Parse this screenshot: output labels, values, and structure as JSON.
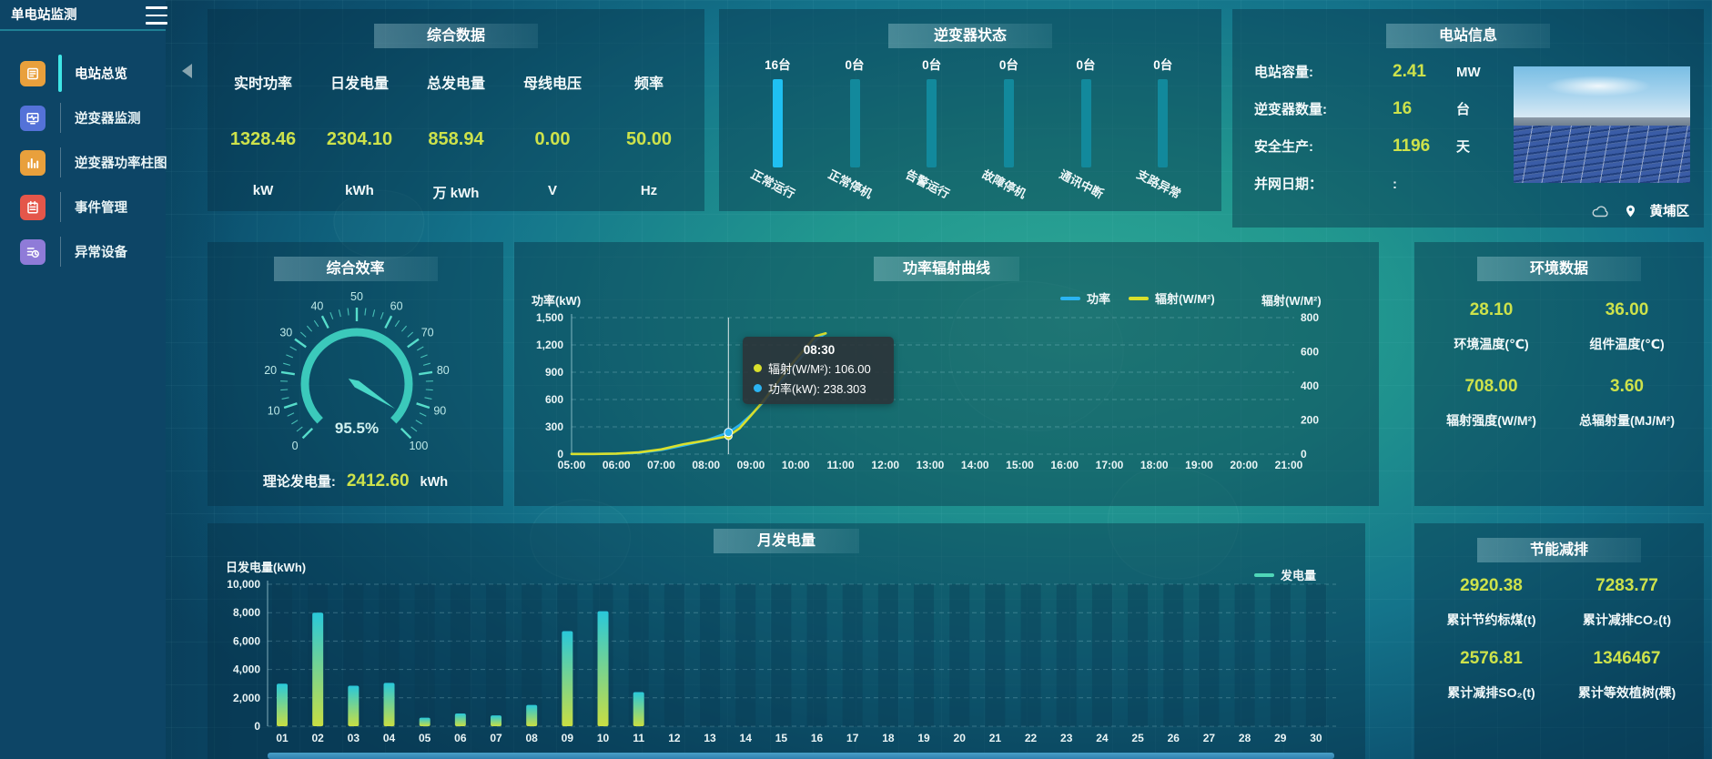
{
  "app": {
    "title": "单电站监测"
  },
  "theme": {
    "value_color": "#cde24b",
    "accent_cyan": "#3fe6e6",
    "panel_bg": "rgba(8,47,68,0.42)"
  },
  "sidebar": {
    "items": [
      {
        "label": "电站总览",
        "icon": "doc-icon",
        "color": "#e9a03c",
        "active": true
      },
      {
        "label": "逆变器监测",
        "icon": "monitor-icon",
        "color": "#5472d8",
        "active": false
      },
      {
        "label": "逆变器功率柱图",
        "icon": "bars-icon",
        "color": "#e9a03c",
        "active": false
      },
      {
        "label": "事件管理",
        "icon": "notebook-icon",
        "color": "#e4564a",
        "active": false
      },
      {
        "label": "异常设备",
        "icon": "list-clock-icon",
        "color": "#8f7bd8",
        "active": false
      }
    ]
  },
  "panels": {
    "summary": {
      "title": "综合数据",
      "metrics": [
        {
          "label": "实时功率",
          "value": "1328.46",
          "unit": "kW"
        },
        {
          "label": "日发电量",
          "value": "2304.10",
          "unit": "kWh"
        },
        {
          "label": "总发电量",
          "value": "858.94",
          "unit": "万  kWh"
        },
        {
          "label": "母线电压",
          "value": "0.00",
          "unit": "V"
        },
        {
          "label": "频率",
          "value": "50.00",
          "unit": "Hz"
        }
      ]
    },
    "inverter_status": {
      "title": "逆变器状态"
    },
    "station_info": {
      "title": "电站信息",
      "rows": [
        {
          "label": "电站容量:",
          "value": "2.41",
          "unit": "MW",
          "muted": false
        },
        {
          "label": "逆变器数量:",
          "value": "16",
          "unit": "台",
          "muted": false
        },
        {
          "label": "安全生产:",
          "value": "1196",
          "unit": "天",
          "muted": false
        },
        {
          "label": "并网日期：",
          "value": ":",
          "unit": "",
          "muted": true
        }
      ],
      "location": "黄埔区"
    },
    "efficiency": {
      "title": "综合效率",
      "theory_label": "理论发电量:",
      "theory_value": "2412.60",
      "theory_unit": "kWh"
    },
    "power_curve": {
      "title": "功率辐射曲线"
    },
    "environment": {
      "title": "环境数据",
      "metrics": [
        {
          "value": "28.10",
          "label": "环境温度(℃)"
        },
        {
          "value": "36.00",
          "label": "组件温度(℃)"
        },
        {
          "value": "708.00",
          "label": "辐射强度(W/M²)"
        },
        {
          "value": "3.60",
          "label": "总辐射量(MJ/M²)"
        }
      ]
    },
    "monthly": {
      "title": "月发电量"
    },
    "savings": {
      "title": "节能减排",
      "metrics": [
        {
          "value": "2920.38",
          "label": "累计节约标煤(t)"
        },
        {
          "value": "7283.77",
          "label": "累计减排CO₂(t)"
        },
        {
          "value": "2576.81",
          "label": "累计减排SO₂(t)"
        },
        {
          "value": "1346467",
          "label": "累计等效植树(棵)"
        }
      ]
    }
  },
  "chart_data": [
    {
      "id": "inverter-status",
      "type": "bar",
      "title": "逆变器状态",
      "categories": [
        "正常运行",
        "正常停机",
        "告警运行",
        "故障停机",
        "通讯中断",
        "支路异常"
      ],
      "values": [
        16,
        0,
        0,
        0,
        0,
        0
      ],
      "value_labels": [
        "16台",
        "0台",
        "0台",
        "0台",
        "0台",
        "0台"
      ],
      "highlight_color": "#1fc0f2",
      "bar_color": "#12899c"
    },
    {
      "id": "efficiency-gauge",
      "type": "gauge",
      "title": "综合效率",
      "min": 0,
      "max": 100,
      "value": 95.5,
      "display": "95.5%",
      "tick_labels": [
        0,
        10,
        20,
        30,
        40,
        50,
        60,
        70,
        80,
        90,
        100
      ],
      "color": "#49d8c7"
    },
    {
      "id": "power-radiation",
      "type": "line",
      "title": "功率辐射曲线",
      "x_labels": [
        "05:00",
        "06:00",
        "07:00",
        "08:00",
        "09:00",
        "10:00",
        "11:00",
        "12:00",
        "13:00",
        "14:00",
        "15:00",
        "16:00",
        "17:00",
        "18:00",
        "19:00",
        "20:00",
        "21:00"
      ],
      "x_range": [
        5,
        21
      ],
      "left_axis": {
        "name": "功率(kW)",
        "min": 0,
        "max": 1500,
        "ticks": [
          "1,500",
          "1,200",
          "900",
          "600",
          "300",
          "0"
        ]
      },
      "right_axis": {
        "name": "辐射(W/M²)",
        "min": 0,
        "max": 800,
        "ticks": [
          "800",
          "600",
          "400",
          "200",
          "0"
        ]
      },
      "grid": true,
      "legend_position": "top",
      "series": [
        {
          "name": "功率",
          "color": "#2bb4f2",
          "axis": "left",
          "points": [
            [
              5,
              2
            ],
            [
              5.5,
              2
            ],
            [
              6,
              5
            ],
            [
              6.5,
              14
            ],
            [
              7,
              45
            ],
            [
              7.5,
              95
            ],
            [
              8,
              152
            ],
            [
              8.5,
              238.303
            ],
            [
              8.75,
              320
            ],
            [
              9,
              430
            ],
            [
              9.25,
              555
            ],
            [
              9.5,
              700
            ],
            [
              9.75,
              845
            ],
            [
              10,
              995
            ],
            [
              10.25,
              1135
            ],
            [
              10.45,
              1255
            ],
            [
              10.67,
              1328.46
            ]
          ]
        },
        {
          "name": "辐射(W/M²)",
          "color": "#d9e02c",
          "axis": "right",
          "points": [
            [
              5,
              1
            ],
            [
              5.5,
              1
            ],
            [
              6,
              3
            ],
            [
              6.5,
              10
            ],
            [
              7,
              28
            ],
            [
              7.5,
              58
            ],
            [
              8,
              80
            ],
            [
              8.5,
              106
            ],
            [
              8.75,
              152
            ],
            [
              9,
              226
            ],
            [
              9.25,
              302
            ],
            [
              9.5,
              388
            ],
            [
              9.75,
              472
            ],
            [
              10,
              556
            ],
            [
              10.25,
              632
            ],
            [
              10.45,
              692
            ],
            [
              10.67,
              708
            ]
          ]
        }
      ],
      "crosshair_x": 8.5,
      "tooltip": {
        "time": "08:30",
        "rows": [
          {
            "dot": "#d9e02c",
            "text": "辐射(W/M²): 106.00"
          },
          {
            "dot": "#2bb4f2",
            "text": "功率(kW): 238.303"
          }
        ]
      }
    },
    {
      "id": "monthly-energy",
      "type": "bar",
      "title": "月发电量",
      "axis_name": "日发电量(kWh)",
      "legend": "发电量",
      "legend_color": "#4fd6b8",
      "categories": [
        "01",
        "02",
        "03",
        "04",
        "05",
        "06",
        "07",
        "08",
        "09",
        "10",
        "11",
        "12",
        "13",
        "14",
        "15",
        "16",
        "17",
        "18",
        "19",
        "20",
        "21",
        "22",
        "23",
        "24",
        "25",
        "26",
        "27",
        "28",
        "29",
        "30"
      ],
      "values": [
        3000,
        8000,
        2850,
        3050,
        600,
        900,
        760,
        1500,
        6700,
        8100,
        2400,
        0,
        0,
        0,
        0,
        0,
        0,
        0,
        0,
        0,
        0,
        0,
        0,
        0,
        0,
        0,
        0,
        0,
        0,
        0
      ],
      "ylim": [
        0,
        10000
      ],
      "yticks": [
        "10,000",
        "8,000",
        "6,000",
        "4,000",
        "2,000",
        "0"
      ],
      "bar_gradient": [
        "#29c8da",
        "#c8de43"
      ]
    }
  ]
}
